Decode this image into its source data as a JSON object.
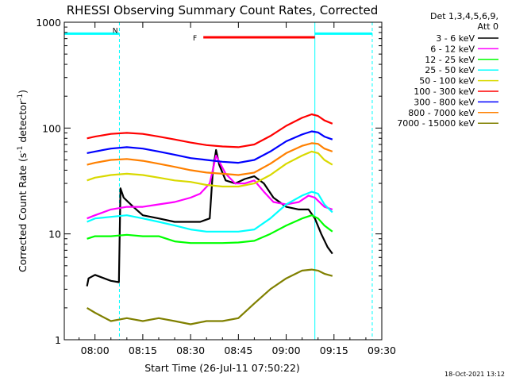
{
  "chart_data": {
    "type": "line",
    "title": "RHESSI Observing Summary Count Rates, Corrected",
    "xlabel": "Start Time (26-Jul-11 07:50:22)",
    "ylabel": "Corrected Count Rate (s⁻¹ detector⁻¹)",
    "ylabel_parts": {
      "main": "Corrected Count Rate (s",
      "sup1": "-1",
      "mid": " detector",
      "sup2": "-1",
      "end": ")"
    },
    "y_scale": "log",
    "ylim": [
      1,
      1000
    ],
    "xlim": [
      "07:50:22",
      "09:30:00"
    ],
    "x_ticks": [
      "08:00",
      "08:15",
      "08:30",
      "08:45",
      "09:00",
      "09:15",
      "09:30"
    ],
    "y_ticks": [
      "1",
      "10",
      "100",
      "1000"
    ],
    "legend": {
      "header1": "Det 1,3,4,5,6,9,",
      "header2": "Att 0",
      "placement": "right"
    },
    "series": [
      {
        "name": "3 - 6 keV",
        "color": "#000000",
        "points": [
          [
            "07:57:30",
            3.2
          ],
          [
            "07:58:00",
            3.8
          ],
          [
            "08:00:00",
            4.1
          ],
          [
            "08:05:00",
            3.6
          ],
          [
            "08:07:30",
            3.5
          ],
          [
            "08:08:00",
            27
          ],
          [
            "08:09:00",
            22
          ],
          [
            "08:12:00",
            18
          ],
          [
            "08:15:00",
            15
          ],
          [
            "08:20:00",
            14
          ],
          [
            "08:25:00",
            13
          ],
          [
            "08:30:00",
            13
          ],
          [
            "08:33:00",
            13
          ],
          [
            "08:36:00",
            14
          ],
          [
            "08:37:00",
            40
          ],
          [
            "08:38:00",
            62
          ],
          [
            "08:39:00",
            45
          ],
          [
            "08:41:00",
            32
          ],
          [
            "08:44:00",
            30
          ],
          [
            "08:47:00",
            33
          ],
          [
            "08:50:00",
            35
          ],
          [
            "08:53:00",
            30
          ],
          [
            "08:56:00",
            22
          ],
          [
            "09:00:00",
            18
          ],
          [
            "09:04:00",
            17
          ],
          [
            "09:07:00",
            17
          ],
          [
            "09:09:00",
            14
          ],
          [
            "09:11:00",
            10
          ],
          [
            "09:13:00",
            7.5
          ],
          [
            "09:14:30",
            6.5
          ]
        ]
      },
      {
        "name": "6 - 12 keV",
        "color": "#ff00ff",
        "points": [
          [
            "07:57:30",
            14
          ],
          [
            "08:00:00",
            15
          ],
          [
            "08:05:00",
            17
          ],
          [
            "08:10:00",
            18
          ],
          [
            "08:15:00",
            18
          ],
          [
            "08:20:00",
            19
          ],
          [
            "08:25:00",
            20
          ],
          [
            "08:30:00",
            22
          ],
          [
            "08:33:00",
            24
          ],
          [
            "08:36:00",
            30
          ],
          [
            "08:38:00",
            55
          ],
          [
            "08:41:00",
            37
          ],
          [
            "08:44:00",
            30
          ],
          [
            "08:47:00",
            30
          ],
          [
            "08:50:00",
            32
          ],
          [
            "08:53:00",
            25
          ],
          [
            "08:56:00",
            20
          ],
          [
            "09:00:00",
            19
          ],
          [
            "09:04:00",
            20
          ],
          [
            "09:07:00",
            23
          ],
          [
            "09:09:00",
            22
          ],
          [
            "09:12:00",
            18
          ],
          [
            "09:14:30",
            17
          ]
        ]
      },
      {
        "name": "12 - 25 keV",
        "color": "#00ff00",
        "points": [
          [
            "07:57:30",
            9
          ],
          [
            "08:00:00",
            9.5
          ],
          [
            "08:05:00",
            9.5
          ],
          [
            "08:10:00",
            9.8
          ],
          [
            "08:15:00",
            9.5
          ],
          [
            "08:20:00",
            9.5
          ],
          [
            "08:25:00",
            8.5
          ],
          [
            "08:30:00",
            8.2
          ],
          [
            "08:35:00",
            8.2
          ],
          [
            "08:40:00",
            8.2
          ],
          [
            "08:45:00",
            8.3
          ],
          [
            "08:50:00",
            8.6
          ],
          [
            "08:55:00",
            10
          ],
          [
            "09:00:00",
            12
          ],
          [
            "09:05:00",
            14
          ],
          [
            "09:08:00",
            15
          ],
          [
            "09:10:00",
            14
          ],
          [
            "09:12:00",
            12
          ],
          [
            "09:14:30",
            10.5
          ]
        ]
      },
      {
        "name": "25 - 50 keV",
        "color": "#00ffff",
        "points": [
          [
            "07:57:30",
            13
          ],
          [
            "08:00:00",
            14
          ],
          [
            "08:05:00",
            14.5
          ],
          [
            "08:10:00",
            15
          ],
          [
            "08:15:00",
            14
          ],
          [
            "08:20:00",
            13
          ],
          [
            "08:25:00",
            12
          ],
          [
            "08:30:00",
            11
          ],
          [
            "08:35:00",
            10.5
          ],
          [
            "08:40:00",
            10.5
          ],
          [
            "08:45:00",
            10.5
          ],
          [
            "08:50:00",
            11
          ],
          [
            "08:55:00",
            14
          ],
          [
            "09:00:00",
            19
          ],
          [
            "09:05:00",
            23
          ],
          [
            "09:08:00",
            25
          ],
          [
            "09:10:00",
            24
          ],
          [
            "09:12:00",
            19
          ],
          [
            "09:14:30",
            16
          ]
        ]
      },
      {
        "name": "50 - 100 keV",
        "color": "#d9d900",
        "points": [
          [
            "07:57:30",
            32
          ],
          [
            "08:00:00",
            34
          ],
          [
            "08:05:00",
            36
          ],
          [
            "08:10:00",
            37
          ],
          [
            "08:15:00",
            36
          ],
          [
            "08:20:00",
            34
          ],
          [
            "08:25:00",
            32
          ],
          [
            "08:30:00",
            31
          ],
          [
            "08:35:00",
            29
          ],
          [
            "08:40:00",
            28
          ],
          [
            "08:45:00",
            28
          ],
          [
            "08:50:00",
            30
          ],
          [
            "08:55:00",
            36
          ],
          [
            "09:00:00",
            46
          ],
          [
            "09:05:00",
            55
          ],
          [
            "09:08:00",
            60
          ],
          [
            "09:10:00",
            58
          ],
          [
            "09:12:00",
            50
          ],
          [
            "09:14:30",
            45
          ]
        ]
      },
      {
        "name": "100 - 300 keV",
        "color": "#ff0000",
        "points": [
          [
            "07:57:30",
            80
          ],
          [
            "08:00:00",
            83
          ],
          [
            "08:05:00",
            88
          ],
          [
            "08:10:00",
            90
          ],
          [
            "08:15:00",
            88
          ],
          [
            "08:20:00",
            83
          ],
          [
            "08:25:00",
            78
          ],
          [
            "08:30:00",
            73
          ],
          [
            "08:35:00",
            69
          ],
          [
            "08:40:00",
            67
          ],
          [
            "08:45:00",
            66
          ],
          [
            "08:50:00",
            70
          ],
          [
            "08:55:00",
            84
          ],
          [
            "09:00:00",
            105
          ],
          [
            "09:05:00",
            125
          ],
          [
            "09:08:00",
            135
          ],
          [
            "09:10:00",
            130
          ],
          [
            "09:12:00",
            118
          ],
          [
            "09:14:30",
            110
          ]
        ]
      },
      {
        "name": "300 - 800 keV",
        "color": "#0000ff",
        "points": [
          [
            "07:57:30",
            58
          ],
          [
            "08:00:00",
            60
          ],
          [
            "08:05:00",
            64
          ],
          [
            "08:10:00",
            66
          ],
          [
            "08:15:00",
            64
          ],
          [
            "08:20:00",
            60
          ],
          [
            "08:25:00",
            56
          ],
          [
            "08:30:00",
            52
          ],
          [
            "08:35:00",
            50
          ],
          [
            "08:40:00",
            48
          ],
          [
            "08:45:00",
            47
          ],
          [
            "08:50:00",
            50
          ],
          [
            "08:55:00",
            60
          ],
          [
            "09:00:00",
            75
          ],
          [
            "09:05:00",
            87
          ],
          [
            "09:08:00",
            93
          ],
          [
            "09:10:00",
            91
          ],
          [
            "09:12:00",
            83
          ],
          [
            "09:14:30",
            78
          ]
        ]
      },
      {
        "name": "800 - 7000 keV",
        "color": "#ff8000",
        "points": [
          [
            "07:57:30",
            45
          ],
          [
            "08:00:00",
            47
          ],
          [
            "08:05:00",
            50
          ],
          [
            "08:10:00",
            51
          ],
          [
            "08:15:00",
            49
          ],
          [
            "08:20:00",
            46
          ],
          [
            "08:25:00",
            43
          ],
          [
            "08:30:00",
            40
          ],
          [
            "08:35:00",
            38
          ],
          [
            "08:40:00",
            37
          ],
          [
            "08:45:00",
            36
          ],
          [
            "08:50:00",
            38
          ],
          [
            "08:55:00",
            46
          ],
          [
            "09:00:00",
            58
          ],
          [
            "09:05:00",
            68
          ],
          [
            "09:08:00",
            72
          ],
          [
            "09:10:00",
            71
          ],
          [
            "09:12:00",
            64
          ],
          [
            "09:14:30",
            60
          ]
        ]
      },
      {
        "name": "7000 - 15000 keV",
        "color": "#808000",
        "points": [
          [
            "07:57:30",
            2.0
          ],
          [
            "08:00:00",
            1.8
          ],
          [
            "08:05:00",
            1.5
          ],
          [
            "08:10:00",
            1.6
          ],
          [
            "08:15:00",
            1.5
          ],
          [
            "08:20:00",
            1.6
          ],
          [
            "08:25:00",
            1.5
          ],
          [
            "08:30:00",
            1.4
          ],
          [
            "08:35:00",
            1.5
          ],
          [
            "08:40:00",
            1.5
          ],
          [
            "08:45:00",
            1.6
          ],
          [
            "08:50:00",
            2.2
          ],
          [
            "08:55:00",
            3.0
          ],
          [
            "09:00:00",
            3.8
          ],
          [
            "09:05:00",
            4.5
          ],
          [
            "09:08:00",
            4.6
          ],
          [
            "09:10:00",
            4.5
          ],
          [
            "09:12:00",
            4.2
          ],
          [
            "09:14:30",
            4.0
          ]
        ]
      }
    ],
    "spacecraft_bars": [
      {
        "color": "#00ffff",
        "y": 780,
        "start": "07:50:22",
        "end": "08:07:40",
        "label": "N"
      },
      {
        "color": "#00ffff",
        "y": 780,
        "start": "09:09:00",
        "end": "09:27:00",
        "label": ""
      },
      {
        "color": "#ff0000",
        "y": 720,
        "start": "08:34:00",
        "end": "09:09:00",
        "label": "F"
      }
    ],
    "vertical_markers": [
      {
        "time": "07:50:22",
        "color": "#00ffff",
        "style": "solid"
      },
      {
        "time": "08:07:40",
        "color": "#00ffff",
        "style": "dashed"
      },
      {
        "time": "09:09:00",
        "color": "#00ffff",
        "style": "solid"
      },
      {
        "time": "09:27:00",
        "color": "#00ffff",
        "style": "dashed"
      }
    ]
  },
  "footer": {
    "timestamp": "18-Oct-2021 13:12"
  }
}
